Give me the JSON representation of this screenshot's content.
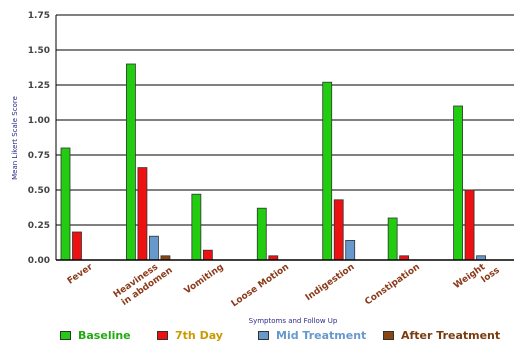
{
  "chart_data": {
    "type": "bar",
    "categories": [
      "Fever",
      "Heaviness in abdomen",
      "Vomiting",
      "Loose Motion",
      "Indigestion",
      "Constipation",
      "Weight loss"
    ],
    "category_lines": [
      [
        "Fever"
      ],
      [
        "Heaviness",
        "in abdomen"
      ],
      [
        "Vomiting"
      ],
      [
        "Loose Motion"
      ],
      [
        "Indigestion"
      ],
      [
        "Constipation"
      ],
      [
        "Weight",
        "loss"
      ]
    ],
    "series": [
      {
        "name": "Baseline",
        "color": "#22cc11",
        "values": [
          0.8,
          1.4,
          0.47,
          0.37,
          1.27,
          0.3,
          1.1
        ]
      },
      {
        "name": "7th Day",
        "color": "#ee1111",
        "values": [
          0.2,
          0.66,
          0.07,
          0.03,
          0.43,
          0.03,
          0.5
        ]
      },
      {
        "name": "Mid Treatment",
        "color": "#6699cc",
        "values": [
          0,
          0.17,
          0,
          0,
          0.14,
          0,
          0.03
        ]
      },
      {
        "name": "After Treatment",
        "color": "#8b4513",
        "values": [
          0,
          0.03,
          0,
          0,
          0,
          0,
          0
        ]
      }
    ],
    "legend_text_colors": [
      "#22aa11",
      "#cc9900",
      "#6699cc",
      "#7a3b0f"
    ],
    "xlabel": "Symptoms and Follow Up",
    "ylabel": "Mean Likert Scale Score",
    "ylim": [
      0,
      1.75
    ],
    "yticks": [
      "0.00",
      "0.25",
      "0.50",
      "0.75",
      "1.00",
      "1.25",
      "1.50",
      "1.75"
    ],
    "grid": true,
    "legend_position": "bottom"
  }
}
